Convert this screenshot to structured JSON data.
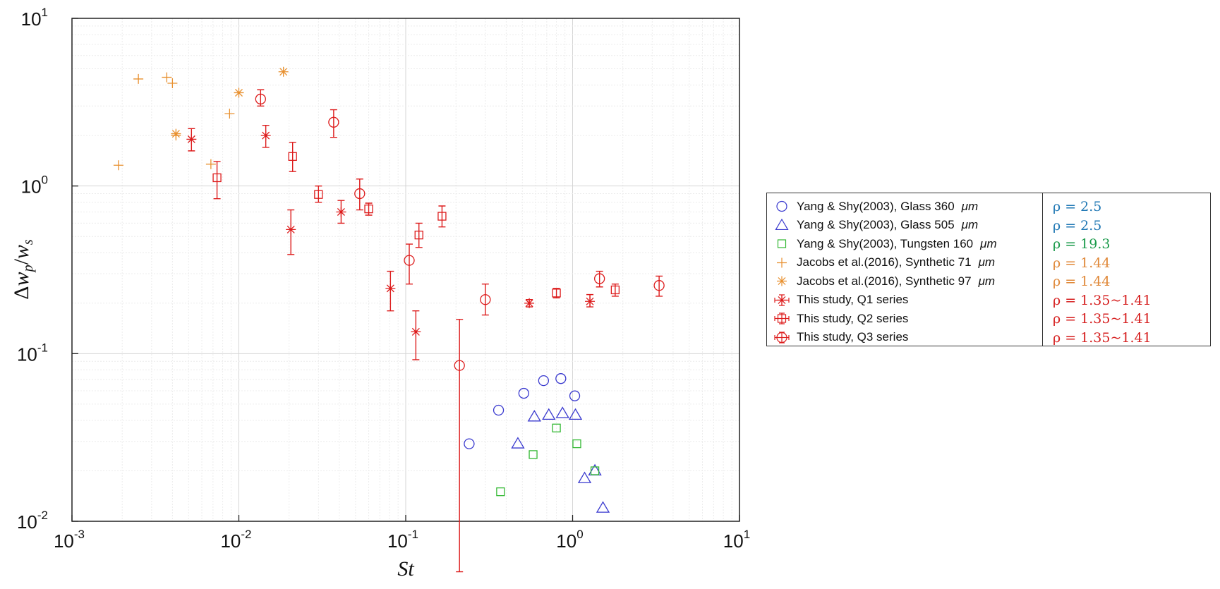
{
  "chart_data": {
    "type": "scatter",
    "xscale": "log",
    "yscale": "log",
    "xlim": [
      0.001,
      10
    ],
    "ylim": [
      0.01,
      10
    ],
    "xlabel": "St",
    "ylabel": "Δw_p/w_s",
    "ylabel_parts": {
      "delta": "Δ",
      "w1": "w",
      "sub1": "p",
      "slash": "/",
      "w2": "w",
      "sub2": "s"
    },
    "grid": true,
    "x_ticks": [
      {
        "base": "10",
        "exp": "-3",
        "value": 0.001
      },
      {
        "base": "10",
        "exp": "-2",
        "value": 0.01
      },
      {
        "base": "10",
        "exp": "-1",
        "value": 0.1
      },
      {
        "base": "10",
        "exp": "0",
        "value": 1
      },
      {
        "base": "10",
        "exp": "1",
        "value": 10
      }
    ],
    "y_ticks": [
      {
        "base": "10",
        "exp": "-2",
        "value": 0.01
      },
      {
        "base": "10",
        "exp": "-1",
        "value": 0.1
      },
      {
        "base": "10",
        "exp": "0",
        "value": 1
      },
      {
        "base": "10",
        "exp": "1",
        "value": 10
      }
    ],
    "series": [
      {
        "name": "Yang & Shy(2003), Glass 360 μm",
        "label": "Yang & Shy(2003), Glass 360",
        "unit": "μm",
        "rho": "ρ = 2.5",
        "rho_color": "#1f77b4",
        "marker": "circle",
        "color": "#3a3acf",
        "points": [
          [
            0.24,
            0.029
          ],
          [
            0.36,
            0.046
          ],
          [
            0.51,
            0.058
          ],
          [
            0.67,
            0.069
          ],
          [
            0.85,
            0.071
          ],
          [
            1.03,
            0.056
          ]
        ]
      },
      {
        "name": "Yang & Shy(2003), Glass 505 μm",
        "label": "Yang & Shy(2003), Glass 505",
        "unit": "μm",
        "rho": "ρ = 2.5",
        "rho_color": "#1f77b4",
        "marker": "triangle",
        "color": "#3a3acf",
        "points": [
          [
            0.47,
            0.029
          ],
          [
            0.59,
            0.042
          ],
          [
            0.72,
            0.043
          ],
          [
            0.87,
            0.044
          ],
          [
            1.04,
            0.043
          ],
          [
            1.18,
            0.018
          ],
          [
            1.36,
            0.02
          ],
          [
            1.52,
            0.012
          ]
        ]
      },
      {
        "name": "Yang & Shy(2003), Tungsten 160 μm",
        "label": "Yang & Shy(2003), Tungsten 160",
        "unit": "μm",
        "rho": "ρ = 19.3",
        "rho_color": "#1a9a4a",
        "marker": "square",
        "color": "#33b833",
        "points": [
          [
            0.37,
            0.015
          ],
          [
            0.58,
            0.025
          ],
          [
            0.8,
            0.036
          ],
          [
            1.06,
            0.029
          ],
          [
            1.36,
            0.02
          ]
        ]
      },
      {
        "name": "Jacobs et al.(2016), Synthetic 71 μm",
        "label": "Jacobs et al.(2016), Synthetic 71",
        "unit": "μm",
        "rho": "ρ = 1.44",
        "rho_color": "#e0893a",
        "marker": "plus",
        "color": "#e8902f",
        "points": [
          [
            0.0019,
            1.33
          ],
          [
            0.0025,
            4.35
          ],
          [
            0.0037,
            4.45
          ],
          [
            0.004,
            4.1
          ],
          [
            0.0042,
            2.0
          ],
          [
            0.0068,
            1.35
          ],
          [
            0.0088,
            2.7
          ]
        ]
      },
      {
        "name": "Jacobs et al.(2016), Synthetic 97 μm",
        "label": "Jacobs et al.(2016), Synthetic 97",
        "unit": "μm",
        "rho": "ρ = 1.44",
        "rho_color": "#e0893a",
        "marker": "asterisk",
        "color": "#e8902f",
        "points": [
          [
            0.0042,
            2.05
          ],
          [
            0.01,
            3.6
          ],
          [
            0.0185,
            4.8
          ]
        ]
      },
      {
        "name": "This study, Q1 series",
        "label": "This study, Q1 series",
        "rho": "ρ = 1.35~1.41",
        "rho_color": "#d62020",
        "marker": "asterisk",
        "color": "#dd1c1c",
        "points": [
          [
            0.0052,
            1.9
          ],
          [
            0.0145,
            2.0
          ],
          [
            0.0205,
            0.55
          ],
          [
            0.041,
            0.7
          ],
          [
            0.081,
            0.245
          ],
          [
            0.115,
            0.135
          ],
          [
            0.55,
            0.2
          ],
          [
            1.27,
            0.205
          ]
        ],
        "yerr_low": [
          1.62,
          1.7,
          0.39,
          0.6,
          0.18,
          0.092,
          0.19,
          0.19
        ],
        "yerr_high": [
          2.2,
          2.3,
          0.72,
          0.82,
          0.31,
          0.18,
          0.21,
          0.225
        ]
      },
      {
        "name": "This study, Q2 series",
        "label": "This study, Q2 series",
        "rho": "ρ = 1.35~1.41",
        "rho_color": "#d62020",
        "marker": "square",
        "color": "#dd1c1c",
        "points": [
          [
            0.0074,
            1.12
          ],
          [
            0.021,
            1.5
          ],
          [
            0.03,
            0.89
          ],
          [
            0.06,
            0.73
          ],
          [
            0.12,
            0.51
          ],
          [
            0.165,
            0.66
          ],
          [
            0.8,
            0.23
          ],
          [
            1.8,
            0.24
          ]
        ],
        "yerr_low": [
          0.84,
          1.22,
          0.8,
          0.67,
          0.43,
          0.57,
          0.215,
          0.22
        ],
        "yerr_high": [
          1.4,
          1.82,
          1.0,
          0.79,
          0.6,
          0.76,
          0.245,
          0.26
        ]
      },
      {
        "name": "This study, Q3 series",
        "label": "This study, Q3 series",
        "rho": "ρ = 1.35~1.41",
        "rho_color": "#d62020",
        "marker": "circle",
        "color": "#dd1c1c",
        "points": [
          [
            0.0135,
            3.3
          ],
          [
            0.037,
            2.4
          ],
          [
            0.053,
            0.9
          ],
          [
            0.105,
            0.36
          ],
          [
            0.21,
            0.085
          ],
          [
            0.3,
            0.21
          ],
          [
            1.45,
            0.28
          ],
          [
            3.3,
            0.255
          ]
        ],
        "yerr_low": [
          3.0,
          1.95,
          0.72,
          0.26,
          0.005,
          0.17,
          0.25,
          0.22
        ],
        "yerr_high": [
          3.75,
          2.85,
          1.1,
          0.45,
          0.16,
          0.26,
          0.31,
          0.29
        ]
      }
    ]
  }
}
